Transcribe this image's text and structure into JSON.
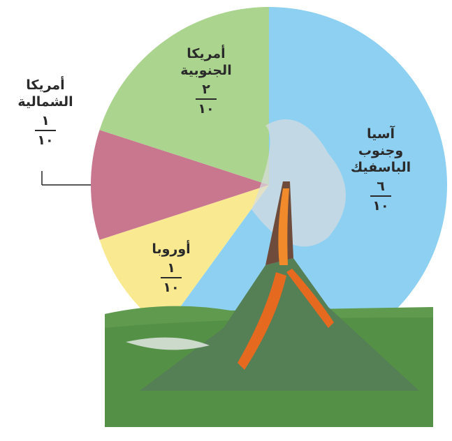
{
  "chart_data": {
    "type": "pie",
    "categories": [
      "آسيا\nوجنوب الباسفيك",
      "أوروبا",
      "أمريكا\nالشمالية",
      "أمريكا\nالجنوبية"
    ],
    "values": [
      0.6,
      0.1,
      0.1,
      0.2
    ],
    "value_labels": [
      [
        "٦",
        "١٠"
      ],
      [
        "١",
        "١٠"
      ],
      [
        "١",
        "١٠"
      ],
      [
        "٢",
        "١٠"
      ]
    ],
    "colors": [
      "#8ed0f2",
      "#f9ea92",
      "#c8778f",
      "#abd58f"
    ]
  }
}
